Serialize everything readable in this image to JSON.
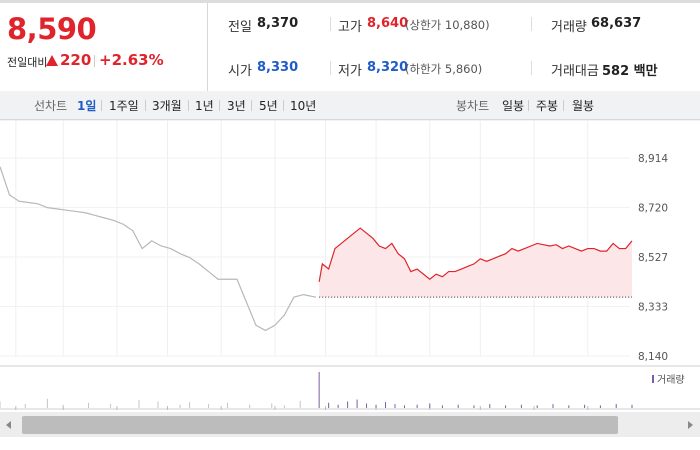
{
  "quote": {
    "price": "8,590",
    "change_label": "전일대비",
    "change_value": "220",
    "change_percent": "+2.63%",
    "prev_close": {
      "label": "전일",
      "value": "8,370"
    },
    "high": {
      "label": "고가",
      "value": "8,640",
      "limit_label": "(상한가 10,880)"
    },
    "volume": {
      "label": "거래량",
      "value": "68,637"
    },
    "open": {
      "label": "시가",
      "value": "8,330"
    },
    "low": {
      "label": "저가",
      "value": "8,320",
      "limit_label": "(하한가 5,860)"
    },
    "amount": {
      "label": "거래대금",
      "value": "582 백만"
    }
  },
  "timeframes": {
    "line_label": "선차트",
    "line_items": [
      "1일",
      "1주일",
      "3개월",
      "1년",
      "3년",
      "5년",
      "10년"
    ],
    "selected": "1일",
    "candle_label": "봉차트",
    "candle_items": [
      "일봉",
      "주봉",
      "월봉"
    ]
  },
  "colors": {
    "up": "#e0242b",
    "down": "#1f5cc7",
    "selected_tab": "#1f5cc7",
    "prev_day_line": "#b8b8b8",
    "today_fill": "#fde6e7",
    "volume_bar": "#c4c4c4",
    "volume_today": "#7a5ea3"
  },
  "chart_data": {
    "type": "line",
    "ylim": [
      8140,
      8914
    ],
    "yticks": [
      "8,914",
      "8,720",
      "8,527",
      "8,333",
      "8,140"
    ],
    "reference": 8370,
    "volume_legend": "거래량",
    "series": [
      {
        "x": [
          0,
          3,
          6,
          9,
          12,
          15,
          18,
          21,
          24,
          27,
          30,
          33,
          36,
          39,
          42,
          45,
          48,
          51,
          54,
          57,
          60,
          63,
          66,
          69,
          72,
          75,
          78,
          81,
          84,
          87,
          90,
          93,
          96,
          100
        ],
        "values": [
          8880,
          8770,
          8745,
          8740,
          8735,
          8720,
          8715,
          8710,
          8705,
          8700,
          8690,
          8680,
          8670,
          8655,
          8630,
          8560,
          8590,
          8570,
          8560,
          8540,
          8525,
          8500,
          8470,
          8440,
          8440,
          8440,
          8350,
          8260,
          8240,
          8260,
          8300,
          8370,
          8380,
          8370
        ]
      },
      {
        "x": [
          101,
          102,
          104,
          106,
          108,
          110,
          112,
          114,
          116,
          118,
          120,
          122,
          124,
          126,
          128,
          130,
          132,
          134,
          136,
          138,
          140,
          142,
          144,
          146,
          148,
          150,
          152,
          154,
          156,
          158,
          160,
          162,
          164,
          166,
          168,
          170,
          172,
          174,
          176,
          178,
          180,
          182,
          184,
          186,
          188,
          190,
          192,
          194,
          196,
          198,
          200
        ],
        "values": [
          8430,
          8500,
          8480,
          8560,
          8580,
          8600,
          8620,
          8640,
          8620,
          8600,
          8570,
          8560,
          8580,
          8540,
          8520,
          8470,
          8480,
          8460,
          8440,
          8460,
          8450,
          8470,
          8470,
          8480,
          8490,
          8500,
          8520,
          8510,
          8520,
          8530,
          8540,
          8560,
          8550,
          8560,
          8570,
          8580,
          8575,
          8570,
          8575,
          8560,
          8570,
          8560,
          8550,
          8560,
          8560,
          8550,
          8550,
          8580,
          8560,
          8560,
          8590
        ]
      }
    ],
    "volume": {
      "x": [
        0,
        8,
        15,
        20,
        28,
        35,
        44,
        50,
        57,
        60,
        66,
        72,
        79,
        86,
        90,
        95,
        101,
        104,
        107,
        110,
        113,
        116,
        119,
        122,
        125,
        128,
        132,
        136,
        140,
        145,
        150,
        155,
        160,
        165,
        170,
        175,
        180,
        185,
        190,
        195,
        200
      ],
      "values": [
        10,
        6,
        14,
        5,
        8,
        6,
        12,
        10,
        5,
        9,
        6,
        8,
        5,
        7,
        4,
        11,
        55,
        8,
        5,
        10,
        13,
        7,
        5,
        9,
        6,
        4,
        5,
        7,
        4,
        5,
        4,
        6,
        4,
        5,
        4,
        6,
        4,
        5,
        4,
        6,
        5
      ]
    },
    "xticks": [
      5,
      20,
      37,
      53,
      70,
      87,
      103,
      119,
      136,
      152,
      169,
      186
    ],
    "ygrid": true
  }
}
